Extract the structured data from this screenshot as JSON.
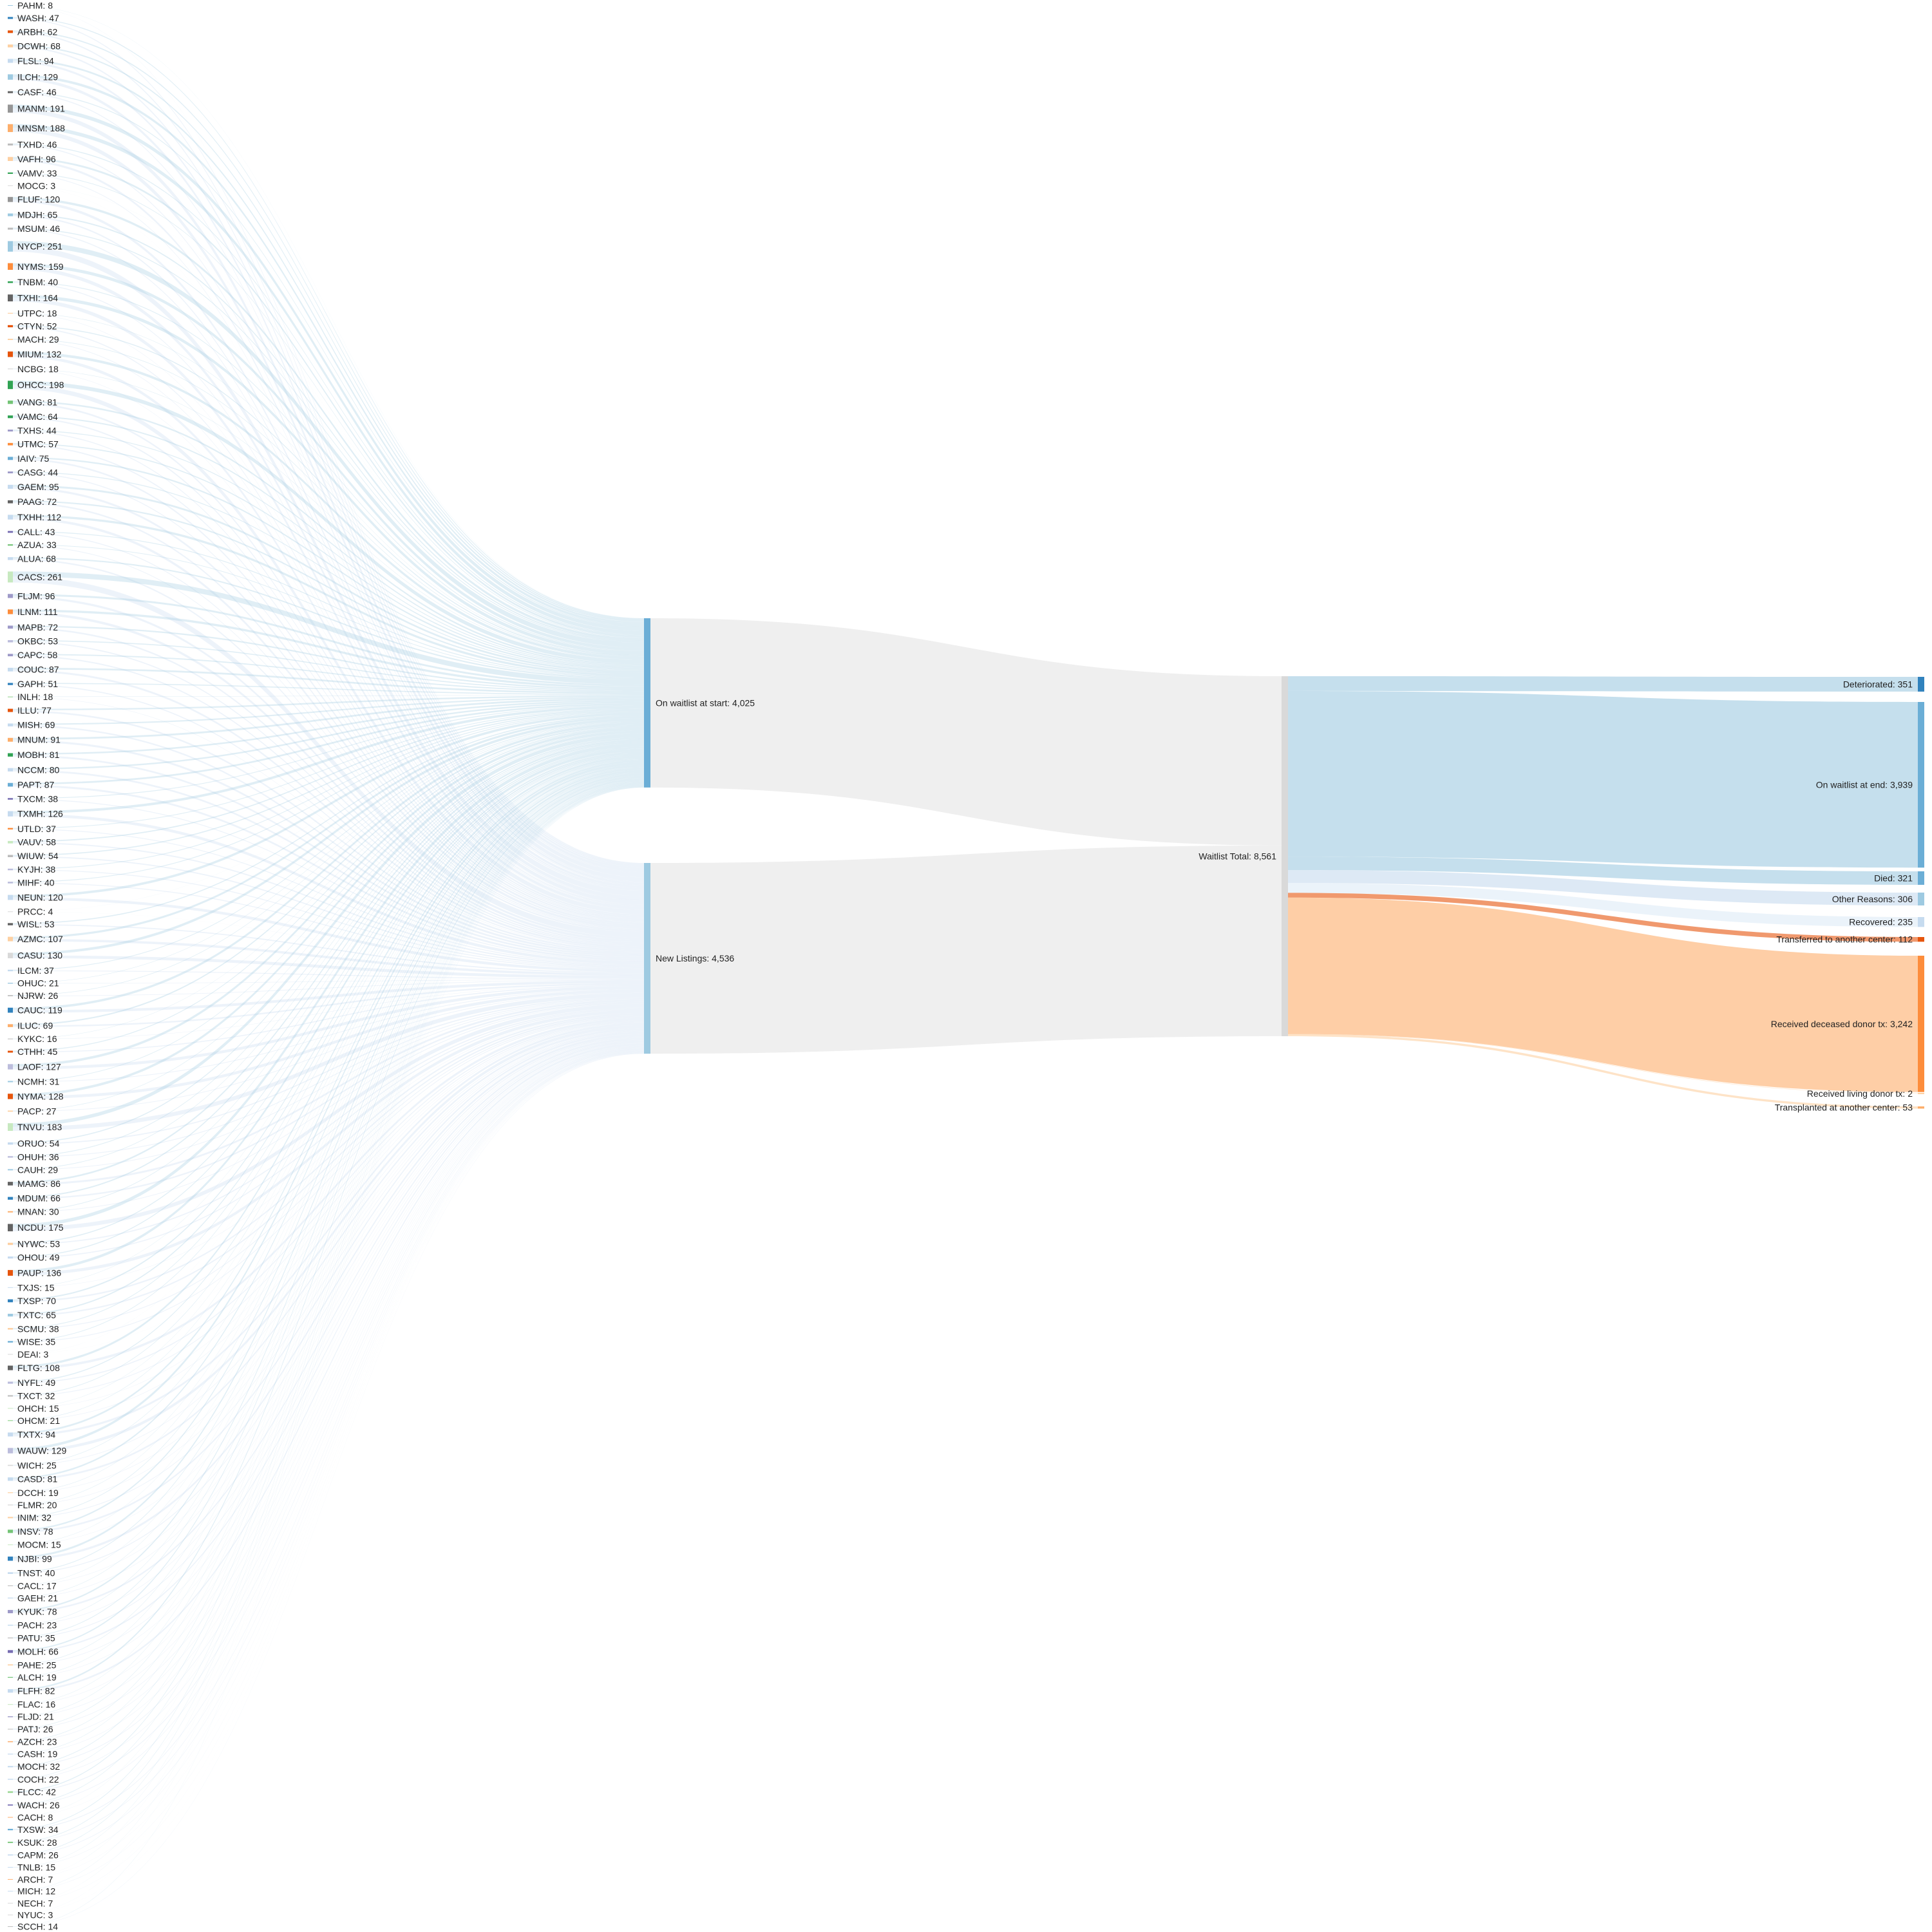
{
  "chart_data": {
    "type": "sankey",
    "centers": [
      {
        "label": "PAHM: 8",
        "value": 8,
        "color": "#9ecae1"
      },
      {
        "label": "WASH: 47",
        "value": 47,
        "color": "#3182bd"
      },
      {
        "label": "ARBH: 62",
        "value": 62,
        "color": "#e6550d"
      },
      {
        "label": "DCWH: 68",
        "value": 68,
        "color": "#fdd0a2"
      },
      {
        "label": "FLSL: 94",
        "value": 94,
        "color": "#c6dbef"
      },
      {
        "label": "ILCH: 129",
        "value": 129,
        "color": "#9ecae1"
      },
      {
        "label": "CASF: 46",
        "value": 46,
        "color": "#636363"
      },
      {
        "label": "MANM: 191",
        "value": 191,
        "color": "#969696"
      },
      {
        "label": "MNSM: 188",
        "value": 188,
        "color": "#fdae6b"
      },
      {
        "label": "TXHD: 46",
        "value": 46,
        "color": "#bdbdbd"
      },
      {
        "label": "VAFH: 96",
        "value": 96,
        "color": "#fdd0a2"
      },
      {
        "label": "VAMV: 33",
        "value": 33,
        "color": "#31a354"
      },
      {
        "label": "MOCG: 3",
        "value": 3,
        "color": "#d9d9d9"
      },
      {
        "label": "FLUF: 120",
        "value": 120,
        "color": "#969696"
      },
      {
        "label": "MDJH: 65",
        "value": 65,
        "color": "#9ecae1"
      },
      {
        "label": "MSUM: 46",
        "value": 46,
        "color": "#bdbdbd"
      },
      {
        "label": "NYCP: 251",
        "value": 251,
        "color": "#9ecae1"
      },
      {
        "label": "NYMS: 159",
        "value": 159,
        "color": "#fd8d3c"
      },
      {
        "label": "TNBM: 40",
        "value": 40,
        "color": "#31a354"
      },
      {
        "label": "TXHI: 164",
        "value": 164,
        "color": "#636363"
      },
      {
        "label": "UTPC: 18",
        "value": 18,
        "color": "#fdd0a2"
      },
      {
        "label": "CTYN: 52",
        "value": 52,
        "color": "#e6550d"
      },
      {
        "label": "MACH: 29",
        "value": 29,
        "color": "#fdd0a2"
      },
      {
        "label": "MIUM: 132",
        "value": 132,
        "color": "#e6550d"
      },
      {
        "label": "NCBG: 18",
        "value": 18,
        "color": "#d9d9d9"
      },
      {
        "label": "OHCC: 198",
        "value": 198,
        "color": "#31a354"
      },
      {
        "label": "VANG: 81",
        "value": 81,
        "color": "#74c476"
      },
      {
        "label": "VAMC: 64",
        "value": 64,
        "color": "#31a354"
      },
      {
        "label": "TXHS: 44",
        "value": 44,
        "color": "#9e9ac8"
      },
      {
        "label": "UTMC: 57",
        "value": 57,
        "color": "#fd8d3c"
      },
      {
        "label": "IAIV: 75",
        "value": 75,
        "color": "#6baed6"
      },
      {
        "label": "CASG: 44",
        "value": 44,
        "color": "#9e9ac8"
      },
      {
        "label": "GAEM: 95",
        "value": 95,
        "color": "#c6dbef"
      },
      {
        "label": "PAAG: 72",
        "value": 72,
        "color": "#636363"
      },
      {
        "label": "TXHH: 112",
        "value": 112,
        "color": "#c6dbef"
      },
      {
        "label": "CALL: 43",
        "value": 43,
        "color": "#756bb1"
      },
      {
        "label": "AZUA: 33",
        "value": 33,
        "color": "#74c476"
      },
      {
        "label": "ALUA: 68",
        "value": 68,
        "color": "#c6dbef"
      },
      {
        "label": "CACS: 261",
        "value": 261,
        "color": "#c7e9c0"
      },
      {
        "label": "FLJM: 96",
        "value": 96,
        "color": "#9e9ac8"
      },
      {
        "label": "ILNM: 111",
        "value": 111,
        "color": "#fd8d3c"
      },
      {
        "label": "MAPB: 72",
        "value": 72,
        "color": "#9e9ac8"
      },
      {
        "label": "OKBC: 53",
        "value": 53,
        "color": "#bcbddc"
      },
      {
        "label": "CAPC: 58",
        "value": 58,
        "color": "#9e9ac8"
      },
      {
        "label": "COUC: 87",
        "value": 87,
        "color": "#c6dbef"
      },
      {
        "label": "GAPH: 51",
        "value": 51,
        "color": "#3182bd"
      },
      {
        "label": "INLH: 18",
        "value": 18,
        "color": "#a1d99b"
      },
      {
        "label": "ILLU: 77",
        "value": 77,
        "color": "#e6550d"
      },
      {
        "label": "MISH: 69",
        "value": 69,
        "color": "#c6dbef"
      },
      {
        "label": "MNUM: 91",
        "value": 91,
        "color": "#fdae6b"
      },
      {
        "label": "MOBH: 81",
        "value": 81,
        "color": "#31a354"
      },
      {
        "label": "NCCM: 80",
        "value": 80,
        "color": "#c6dbef"
      },
      {
        "label": "PAPT: 87",
        "value": 87,
        "color": "#6baed6"
      },
      {
        "label": "TXCM: 38",
        "value": 38,
        "color": "#756bb1"
      },
      {
        "label": "TXMH: 126",
        "value": 126,
        "color": "#c6dbef"
      },
      {
        "label": "UTLD: 37",
        "value": 37,
        "color": "#fd8d3c"
      },
      {
        "label": "VAUV: 58",
        "value": 58,
        "color": "#c7e9c0"
      },
      {
        "label": "WIUW: 54",
        "value": 54,
        "color": "#bdbdbd"
      },
      {
        "label": "KYJH: 38",
        "value": 38,
        "color": "#bcbddc"
      },
      {
        "label": "MIHF: 40",
        "value": 40,
        "color": "#bcbddc"
      },
      {
        "label": "NEUN: 120",
        "value": 120,
        "color": "#c6dbef"
      },
      {
        "label": "PRCC: 4",
        "value": 4,
        "color": "#d9d9d9"
      },
      {
        "label": "WISL: 53",
        "value": 53,
        "color": "#636363"
      },
      {
        "label": "AZMC: 107",
        "value": 107,
        "color": "#fdd0a2"
      },
      {
        "label": "CASU: 130",
        "value": 130,
        "color": "#d9d9d9"
      },
      {
        "label": "ILCM: 37",
        "value": 37,
        "color": "#c6dbef"
      },
      {
        "label": "OHUC: 21",
        "value": 21,
        "color": "#9ecae1"
      },
      {
        "label": "NJRW: 26",
        "value": 26,
        "color": "#bdbdbd"
      },
      {
        "label": "CAUC: 119",
        "value": 119,
        "color": "#3182bd"
      },
      {
        "label": "ILUC: 69",
        "value": 69,
        "color": "#fdae6b"
      },
      {
        "label": "KYKC: 16",
        "value": 16,
        "color": "#bdbdbd"
      },
      {
        "label": "CTHH: 45",
        "value": 45,
        "color": "#e6550d"
      },
      {
        "label": "LAOF: 127",
        "value": 127,
        "color": "#bcbddc"
      },
      {
        "label": "NCMH: 31",
        "value": 31,
        "color": "#9ecae1"
      },
      {
        "label": "NYMA: 128",
        "value": 128,
        "color": "#e6550d"
      },
      {
        "label": "PACP: 27",
        "value": 27,
        "color": "#fdd0a2"
      },
      {
        "label": "TNVU: 183",
        "value": 183,
        "color": "#c7e9c0"
      },
      {
        "label": "ORUO: 54",
        "value": 54,
        "color": "#c6dbef"
      },
      {
        "label": "OHUH: 36",
        "value": 36,
        "color": "#bcbddc"
      },
      {
        "label": "CAUH: 29",
        "value": 29,
        "color": "#9ecae1"
      },
      {
        "label": "MAMG: 86",
        "value": 86,
        "color": "#636363"
      },
      {
        "label": "MDUM: 66",
        "value": 66,
        "color": "#3182bd"
      },
      {
        "label": "MNAN: 30",
        "value": 30,
        "color": "#fdae6b"
      },
      {
        "label": "NCDU: 175",
        "value": 175,
        "color": "#636363"
      },
      {
        "label": "NYWC: 53",
        "value": 53,
        "color": "#fdd0a2"
      },
      {
        "label": "OHOU: 49",
        "value": 49,
        "color": "#c6dbef"
      },
      {
        "label": "PAUP: 136",
        "value": 136,
        "color": "#e6550d"
      },
      {
        "label": "TXJS: 15",
        "value": 15,
        "color": "#c6dbef"
      },
      {
        "label": "TXSP: 70",
        "value": 70,
        "color": "#3182bd"
      },
      {
        "label": "TXTC: 65",
        "value": 65,
        "color": "#9ecae1"
      },
      {
        "label": "SCMU: 38",
        "value": 38,
        "color": "#fdd0a2"
      },
      {
        "label": "WISE: 35",
        "value": 35,
        "color": "#6baed6"
      },
      {
        "label": "DEAI: 3",
        "value": 3,
        "color": "#d9d9d9"
      },
      {
        "label": "FLTG: 108",
        "value": 108,
        "color": "#636363"
      },
      {
        "label": "NYFL: 49",
        "value": 49,
        "color": "#bcbddc"
      },
      {
        "label": "TXCT: 32",
        "value": 32,
        "color": "#bdbdbd"
      },
      {
        "label": "OHCH: 15",
        "value": 15,
        "color": "#c7e9c0"
      },
      {
        "label": "OHCM: 21",
        "value": 21,
        "color": "#a1d99b"
      },
      {
        "label": "TXTX: 94",
        "value": 94,
        "color": "#c6dbef"
      },
      {
        "label": "WAUW: 129",
        "value": 129,
        "color": "#bcbddc"
      },
      {
        "label": "WICH: 25",
        "value": 25,
        "color": "#d9d9d9"
      },
      {
        "label": "CASD: 81",
        "value": 81,
        "color": "#c6dbef"
      },
      {
        "label": "DCCH: 19",
        "value": 19,
        "color": "#fdd0a2"
      },
      {
        "label": "FLMR: 20",
        "value": 20,
        "color": "#d9d9d9"
      },
      {
        "label": "INIM: 32",
        "value": 32,
        "color": "#fdd0a2"
      },
      {
        "label": "INSV: 78",
        "value": 78,
        "color": "#74c476"
      },
      {
        "label": "MOCM: 15",
        "value": 15,
        "color": "#c7e9c0"
      },
      {
        "label": "NJBI: 99",
        "value": 99,
        "color": "#3182bd"
      },
      {
        "label": "TNST: 40",
        "value": 40,
        "color": "#c6dbef"
      },
      {
        "label": "CACL: 17",
        "value": 17,
        "color": "#bdbdbd"
      },
      {
        "label": "GAEH: 21",
        "value": 21,
        "color": "#c6dbef"
      },
      {
        "label": "KYUK: 78",
        "value": 78,
        "color": "#9e9ac8"
      },
      {
        "label": "PACH: 23",
        "value": 23,
        "color": "#c6dbef"
      },
      {
        "label": "PATU: 35",
        "value": 35,
        "color": "#d9d9d9"
      },
      {
        "label": "MOLH: 66",
        "value": 66,
        "color": "#756bb1"
      },
      {
        "label": "PAHE: 25",
        "value": 25,
        "color": "#fdd0a2"
      },
      {
        "label": "ALCH: 19",
        "value": 19,
        "color": "#74c476"
      },
      {
        "label": "FLFH: 82",
        "value": 82,
        "color": "#c6dbef"
      },
      {
        "label": "FLAC: 16",
        "value": 16,
        "color": "#c7e9c0"
      },
      {
        "label": "FLJD: 21",
        "value": 21,
        "color": "#9e9ac8"
      },
      {
        "label": "PATJ: 26",
        "value": 26,
        "color": "#d9d9d9"
      },
      {
        "label": "AZCH: 23",
        "value": 23,
        "color": "#fdae6b"
      },
      {
        "label": "CASH: 19",
        "value": 19,
        "color": "#c6dbef"
      },
      {
        "label": "MOCH: 32",
        "value": 32,
        "color": "#c6dbef"
      },
      {
        "label": "COCH: 22",
        "value": 22,
        "color": "#c6dbef"
      },
      {
        "label": "FLCC: 42",
        "value": 42,
        "color": "#a1d99b"
      },
      {
        "label": "WACH: 26",
        "value": 26,
        "color": "#756bb1"
      },
      {
        "label": "CACH: 8",
        "value": 8,
        "color": "#fdae6b"
      },
      {
        "label": "TXSW: 34",
        "value": 34,
        "color": "#6baed6"
      },
      {
        "label": "KSUK: 28",
        "value": 28,
        "color": "#74c476"
      },
      {
        "label": "CAPM: 26",
        "value": 26,
        "color": "#c6dbef"
      },
      {
        "label": "TNLB: 15",
        "value": 15,
        "color": "#c6dbef"
      },
      {
        "label": "ARCH: 7",
        "value": 7,
        "color": "#fdae6b"
      },
      {
        "label": "MICH: 12",
        "value": 12,
        "color": "#c6dbef"
      },
      {
        "label": "NECH: 7",
        "value": 7,
        "color": "#d9d9d9"
      },
      {
        "label": "NYUC: 3",
        "value": 3,
        "color": "#d9d9d9"
      },
      {
        "label": "SCCH: 14",
        "value": 14,
        "color": "#bdbdbd"
      }
    ],
    "middle": [
      {
        "label": "On waitlist at start: 4,025",
        "value": 4025,
        "color": "#6baed6"
      },
      {
        "label": "New Listings: 4,536",
        "value": 4536,
        "color": "#9ecae1"
      }
    ],
    "total": {
      "label": "Waitlist Total: 8,561",
      "value": 8561,
      "color": "#d9d9d9"
    },
    "outcomes": [
      {
        "label": "Deteriorated: 351",
        "value": 351,
        "color": "#3182bd",
        "link_color": "#9ecae1"
      },
      {
        "label": "On waitlist at end: 3,939",
        "value": 3939,
        "color": "#6baed6",
        "link_color": "#9ecae1"
      },
      {
        "label": "Died: 321",
        "value": 321,
        "color": "#6baed6",
        "link_color": "#9ecae1"
      },
      {
        "label": "Other Reasons: 306",
        "value": 306,
        "color": "#9ecae1",
        "link_color": "#c6dbef"
      },
      {
        "label": "Recovered: 235",
        "value": 235,
        "color": "#c6dbef",
        "link_color": "#deebf7"
      },
      {
        "label": "Transferred to another center: 112",
        "value": 112,
        "color": "#e6550d",
        "link_color": "#e6550d"
      },
      {
        "label": "Received deceased donor tx: 3,242",
        "value": 3242,
        "color": "#fd8d3c",
        "link_color": "#fdae6b"
      },
      {
        "label": "Received living donor tx: 2",
        "value": 2,
        "color": "#fdd0a2",
        "link_color": "#fdd0a2"
      },
      {
        "label": "Transplanted at another center: 53",
        "value": 53,
        "color": "#fdae6b",
        "link_color": "#fdd0a2"
      }
    ]
  }
}
